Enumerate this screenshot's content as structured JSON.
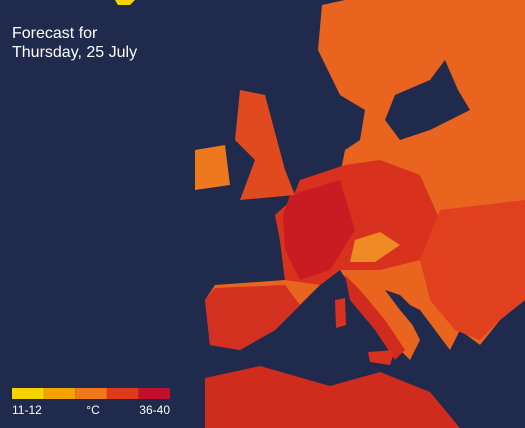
{
  "title": {
    "line1": "Forecast for",
    "line2": "Thursday, 25 July"
  },
  "legend": {
    "colors": [
      "#f7d400",
      "#f5a300",
      "#ee7a1c",
      "#e03a1e",
      "#c2102c"
    ],
    "labels": {
      "low": "11-12",
      "unit": "°C",
      "high": "36-40"
    }
  }
}
